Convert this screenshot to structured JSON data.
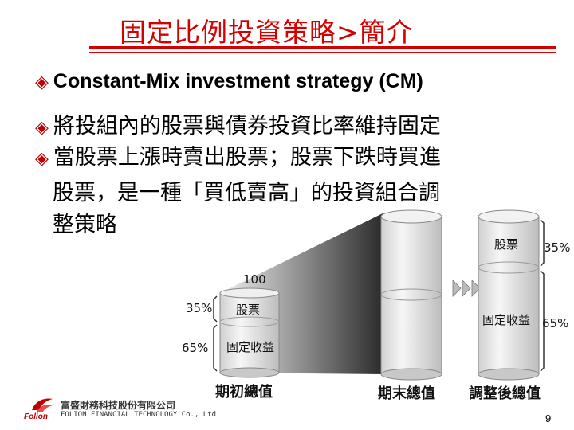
{
  "slide": {
    "title": "固定比例投資策略>簡介",
    "bullets": [
      "Constant-Mix investment strategy (CM)",
      "將投組內的股票與債券投資比率維持固定",
      "當股票上漲時賣出股票；股票下跌時買進"
    ],
    "bullet3_cont": [
      "股票，是一種「買低賣高」的投資組合調",
      "整策略"
    ],
    "bullet_icon": "diamond-ring-icon",
    "page_number": "9",
    "accent_color": "#d40000"
  },
  "diagram": {
    "initial": {
      "value": "100",
      "stock_label": "股票",
      "stock_pct": "35%",
      "bond_label": "固定收益",
      "bond_pct": "65%",
      "caption": "期初總值"
    },
    "end": {
      "caption": "期末總值"
    },
    "adjusted": {
      "stock_label": "股票",
      "stock_pct": "35%",
      "bond_label": "固定收益",
      "bond_pct": "65%",
      "caption": "調整後總值"
    },
    "arrow_icon": "triple-chevron-right-icon"
  },
  "footer": {
    "company_cn": "富盛財務科技股份有限公司",
    "company_en": "FOLION FINANCIAL TECHNOLOGY Co., Ltd",
    "brand": "Folion"
  }
}
